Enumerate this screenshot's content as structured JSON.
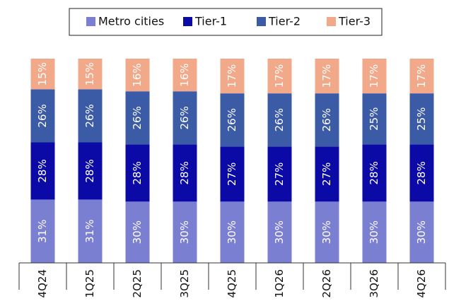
{
  "chart_data": {
    "type": "stacked_bar",
    "categories": [
      "4Q24",
      "1Q25",
      "2Q25",
      "3Q25",
      "4Q25",
      "1Q26",
      "2Q26",
      "3Q26",
      "4Q26"
    ],
    "series": [
      {
        "name": "Metro cities",
        "color": "#7b7fd2",
        "values": [
          31,
          31,
          30,
          30,
          30,
          30,
          30,
          30,
          30
        ],
        "value_labels": [
          "31%",
          "31%",
          "30%",
          "30%",
          "30%",
          "30%",
          "30%",
          "30%",
          "30%"
        ]
      },
      {
        "name": "Tier-1",
        "color": "#0b0aa6",
        "values": [
          28,
          28,
          28,
          28,
          27,
          27,
          27,
          28,
          28
        ],
        "value_labels": [
          "28%",
          "28%",
          "28%",
          "28%",
          "27%",
          "27%",
          "27%",
          "28%",
          "28%"
        ]
      },
      {
        "name": "Tier-2",
        "color": "#3b5ba7",
        "values": [
          26,
          26,
          26,
          26,
          26,
          26,
          26,
          25,
          25
        ],
        "value_labels": [
          "26%",
          "26%",
          "26%",
          "26%",
          "26%",
          "26%",
          "26%",
          "25%",
          "25%"
        ]
      },
      {
        "name": "Tier-3",
        "color": "#f1a98a",
        "values": [
          15,
          15,
          16,
          16,
          17,
          17,
          17,
          17,
          17
        ],
        "value_labels": [
          "15%",
          "15%",
          "16%",
          "16%",
          "17%",
          "17%",
          "17%",
          "17%",
          "17%"
        ]
      }
    ],
    "legend": "top"
  }
}
